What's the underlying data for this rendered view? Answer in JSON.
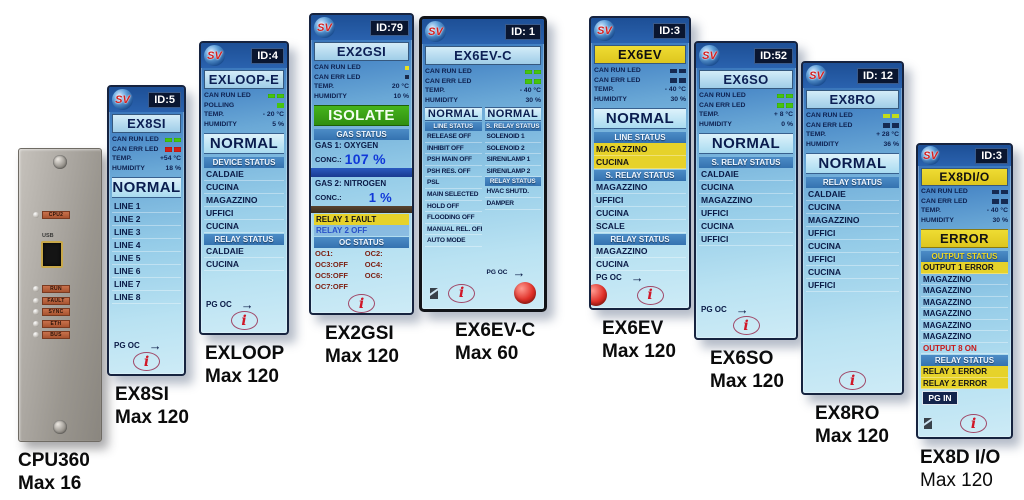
{
  "shared": {
    "logo": "SV",
    "pg_oc": "PG OC",
    "arrow": "→",
    "info": "i"
  },
  "colors": {
    "lcd_blue": "#3c7cc0",
    "highlight_yellow": "#e6d22a",
    "alarm_red": "#d02018",
    "ok_green": "#46c40e"
  },
  "panels": {
    "cpu360": {
      "top_led_label": "CPU2",
      "usb_label": "USB",
      "led_labels": [
        "RUN",
        "FAULT",
        "SYNC",
        "ETH",
        "BUS"
      ],
      "caption1": "CPU360",
      "caption2": "Max 16"
    },
    "ex8si": {
      "id": "ID:5",
      "title": "EX8SI",
      "stats": [
        {
          "label": "CAN RUN LED",
          "led": "led-green"
        },
        {
          "label": "CAN ERR LED",
          "led": "led-red"
        },
        {
          "label": "TEMP.",
          "value": "+54 °C"
        },
        {
          "label": "HUMIDITY",
          "value": "18 %"
        }
      ],
      "status": "NORMAL",
      "lines": [
        "LINE 1",
        "LINE 2",
        "LINE 3",
        "LINE 4",
        "LINE 5",
        "LINE 6",
        "LINE 7",
        "LINE 8"
      ],
      "caption1": "EX8SI",
      "caption2": "Max 120"
    },
    "exloop": {
      "id": "ID:4",
      "title": "EXLOOP-E",
      "stats": [
        {
          "label": "CAN RUN LED",
          "led": "led-green"
        },
        {
          "label": "POLLING",
          "led": "led-green1"
        },
        {
          "label": "TEMP.",
          "value": "- 20 °C"
        },
        {
          "label": "HUMIDITY",
          "value": "5 %"
        }
      ],
      "status": "NORMAL",
      "device_status_header": "DEVICE STATUS",
      "devices": [
        "CALDAIE",
        "CUCINA",
        "MAGAZZINO",
        "UFFICI",
        "CUCINA"
      ],
      "relay_status_header": "RELAY STATUS",
      "relays": [
        "CALDAIE",
        "CUCINA"
      ],
      "caption1": "EXLOOP",
      "caption2": "Max 120"
    },
    "ex2gsi": {
      "id": "ID:79",
      "title": "EX2GSI",
      "stats": [
        {
          "label": "CAN RUN LED",
          "led": "dot-yellow"
        },
        {
          "label": "CAN ERR LED",
          "led": "dot-dark"
        },
        {
          "label": "TEMP.",
          "value": "20 °C"
        },
        {
          "label": "HUMIDITY",
          "value": "10 %"
        }
      ],
      "status": "ISOLATE",
      "gas_status_header": "GAS STATUS",
      "gas1_label": "GAS 1: OXYGEN",
      "conc_label": "CONC.:",
      "gas1_value": "107 %",
      "gas2_label": "GAS 2: NITROGEN",
      "gas2_value": "1 %",
      "relay1": "RELAY 1  FAULT",
      "relay2": "RELAY 2  OFF",
      "oc_status_header": "OC STATUS",
      "oc": [
        "OC1:",
        "OC2:",
        "OC3:OFF",
        "OC4:",
        "OC5:OFF",
        "OC6:",
        "OC7:OFF"
      ],
      "caption1": "EX2GSI",
      "caption2": "Max 120"
    },
    "ex6evc": {
      "id": "ID: 1",
      "title": "EX6EV-C",
      "stats": [
        {
          "label": "CAN RUN LED",
          "led": "led-green"
        },
        {
          "label": "CAN ERR LED",
          "led": "led-green"
        },
        {
          "label": "TEMP.",
          "value": "- 40 °C"
        },
        {
          "label": "HUMIDITY",
          "value": "30 %"
        }
      ],
      "left": {
        "status": "NORMAL",
        "header": "LINE STATUS",
        "items": [
          "RELEASE OFF",
          "INHIBIT OFF",
          "PSH MAIN OFF",
          "PSH RES. OFF",
          "PSL",
          "MAIN SELECTED",
          "HOLD OFF",
          "FLOODING OFF",
          "MANUAL REL. OFF",
          "AUTO MODE"
        ]
      },
      "right": {
        "status": "NORMAL",
        "header": "S. RELAY STATUS",
        "items": [
          "SOLENOID 1",
          "SOLENOID 2",
          "SIREN/LAMP 1",
          "SIREN/LAMP 2"
        ],
        "header2": "RELAY STATUS",
        "items2": [
          "HVAC SHUTD.",
          "DAMPER"
        ]
      },
      "caption1": "EX6EV-C",
      "caption2": "Max 60"
    },
    "ex6ev": {
      "id": "ID:3",
      "title": "EX6EV",
      "stats": [
        {
          "label": "CAN RUN LED",
          "led": "led-dark"
        },
        {
          "label": "CAN ERR LED",
          "led": "led-dark"
        },
        {
          "label": "TEMP.",
          "value": "- 40 °C"
        },
        {
          "label": "HUMIDITY",
          "value": "30 %"
        }
      ],
      "status": "NORMAL",
      "line_status_header": "LINE STATUS",
      "line_items": [
        {
          "label": "MAGAZZINO",
          "cls": "hl-yellow"
        },
        {
          "label": "CUCINA",
          "cls": "hl-yellow"
        }
      ],
      "srelay_header": "S. RELAY STATUS",
      "srelay_items": [
        "MAGAZZINO",
        "UFFICI",
        "CUCINA",
        "SCALE"
      ],
      "relay_header": "RELAY STATUS",
      "relay_items": [
        "MAGAZZINO",
        "CUCINA"
      ],
      "caption1": "EX6EV",
      "caption2": "Max 120"
    },
    "ex6so": {
      "id": "ID:52",
      "title": "EX6SO",
      "stats": [
        {
          "label": "CAN RUN LED",
          "led": "led-green"
        },
        {
          "label": "CAN ERR LED",
          "led": "led-green"
        },
        {
          "label": "TEMP.",
          "value": "+ 8 °C"
        },
        {
          "label": "HUMIDITY",
          "value": "0 %"
        }
      ],
      "status": "NORMAL",
      "srelay_header": "S. RELAY STATUS",
      "items": [
        "CALDAIE",
        "CUCINA",
        "MAGAZZINO",
        "UFFICI",
        "CUCINA",
        "UFFICI"
      ],
      "caption1": "EX6SO",
      "caption2": "Max 120"
    },
    "ex8ro": {
      "id": "ID: 12",
      "title": "EX8RO",
      "stats": [
        {
          "label": "CAN RUN LED",
          "led": "led-yellow"
        },
        {
          "label": "CAN ERR LED",
          "led": "led-dark"
        },
        {
          "label": "TEMP.",
          "value": "+ 28 °C"
        },
        {
          "label": "HUMIDITY",
          "value": "36 %"
        }
      ],
      "status": "NORMAL",
      "relay_header": "RELAY STATUS",
      "items": [
        "CALDAIE",
        "CUCINA",
        "MAGAZZINO",
        "UFFICI",
        "CUCINA",
        "UFFICI",
        "CUCINA",
        "UFFICI"
      ],
      "caption1": "EX8RO",
      "caption2": "Max 120"
    },
    "ex8dio": {
      "id": "ID:3",
      "title": "EX8DI/O",
      "stats": [
        {
          "label": "CAN RUN LED",
          "led": "led-dark"
        },
        {
          "label": "CAN ERR LED",
          "led": "led-dark"
        },
        {
          "label": "TEMP.",
          "value": "- 40 °C"
        },
        {
          "label": "HUMIDITY",
          "value": "30 %"
        }
      ],
      "status": "ERROR",
      "output_header": "OUTPUT STATUS",
      "outputs": [
        {
          "label": "OUTPUT 1  ERROR",
          "cls": "hl-yellow"
        },
        "MAGAZZINO",
        "MAGAZZINO",
        "MAGAZZINO",
        "MAGAZZINO",
        "MAGAZZINO",
        "MAGAZZINO",
        {
          "label": "OUTPUT 8  ON",
          "cls": "txt-red"
        }
      ],
      "relay_header": "RELAY STATUS",
      "relays": [
        {
          "label": "RELAY 1  ERROR",
          "cls": "hl-yellow"
        },
        {
          "label": "RELAY 2  ERROR",
          "cls": "hl-yellow"
        }
      ],
      "pg_in": "PG IN",
      "caption1": "EX8D I/O",
      "caption2": "Max 120"
    }
  }
}
